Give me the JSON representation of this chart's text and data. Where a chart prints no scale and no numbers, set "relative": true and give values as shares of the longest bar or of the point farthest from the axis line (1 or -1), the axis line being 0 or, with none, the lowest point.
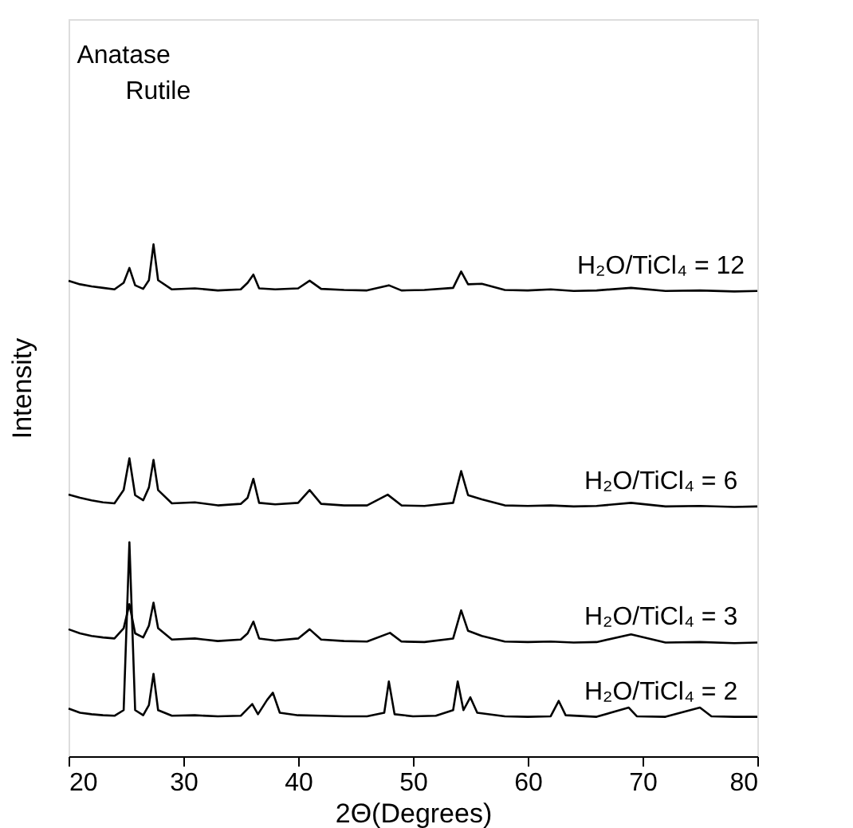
{
  "chart_data": {
    "type": "line",
    "relative": true,
    "xlabel": "2Θ(Degrees)",
    "ylabel": "Intensity",
    "xlim": [
      20,
      80
    ],
    "xticks": [
      20,
      30,
      40,
      50,
      60,
      70,
      80
    ],
    "grid": false,
    "legend": false,
    "series": [
      {
        "name": "H₂O/TiCl₄ = 12",
        "color": "#000000",
        "x": [
          20,
          21,
          22,
          23,
          24,
          24.8,
          25.3,
          25.8,
          26.5,
          27,
          27.4,
          27.8,
          29,
          31,
          33,
          35,
          35.6,
          36.1,
          36.6,
          38,
          40,
          41,
          42,
          44,
          46,
          47.9,
          49,
          51,
          53.5,
          54.2,
          54.8,
          56,
          58,
          60,
          62,
          64,
          66,
          69,
          72,
          75,
          78,
          80
        ],
        "values": [
          0.929,
          0.922,
          0.918,
          0.915,
          0.912,
          0.925,
          0.954,
          0.92,
          0.913,
          0.93,
          1.0,
          0.93,
          0.912,
          0.914,
          0.91,
          0.912,
          0.925,
          0.941,
          0.914,
          0.912,
          0.914,
          0.929,
          0.913,
          0.911,
          0.91,
          0.92,
          0.91,
          0.911,
          0.915,
          0.947,
          0.922,
          0.923,
          0.911,
          0.91,
          0.912,
          0.909,
          0.91,
          0.915,
          0.909,
          0.91,
          0.908,
          0.909
        ]
      },
      {
        "name": "H₂O/TiCl₄ = 6",
        "color": "#000000",
        "x": [
          20,
          21,
          22,
          23,
          24,
          24.8,
          25.3,
          25.8,
          26.5,
          27,
          27.4,
          27.8,
          29,
          31,
          33,
          35,
          35.6,
          36.1,
          36.6,
          38,
          40,
          41,
          42,
          44,
          46,
          47.8,
          49,
          51,
          53.5,
          54.2,
          54.8,
          56,
          58,
          60,
          62,
          64,
          66,
          69,
          72,
          75,
          78,
          80
        ],
        "values": [
          0.511,
          0.505,
          0.5,
          0.496,
          0.494,
          0.52,
          0.582,
          0.51,
          0.5,
          0.525,
          0.579,
          0.52,
          0.494,
          0.496,
          0.49,
          0.493,
          0.505,
          0.542,
          0.495,
          0.492,
          0.495,
          0.52,
          0.493,
          0.49,
          0.49,
          0.511,
          0.49,
          0.489,
          0.495,
          0.557,
          0.51,
          0.502,
          0.49,
          0.489,
          0.49,
          0.488,
          0.489,
          0.495,
          0.488,
          0.489,
          0.487,
          0.488
        ]
      },
      {
        "name": "H₂O/TiCl₄ = 3",
        "color": "#000000",
        "x": [
          20,
          21,
          22,
          23,
          24,
          24.8,
          25.3,
          25.8,
          26.5,
          27,
          27.4,
          27.8,
          29,
          31,
          33,
          35,
          35.6,
          36.1,
          36.6,
          38,
          40,
          41,
          42,
          44,
          46,
          48,
          49,
          51,
          53.5,
          54.2,
          54.8,
          56,
          58,
          60,
          62,
          64,
          66,
          69,
          72,
          75,
          78,
          80
        ],
        "values": [
          0.248,
          0.24,
          0.235,
          0.232,
          0.23,
          0.25,
          0.297,
          0.24,
          0.232,
          0.255,
          0.3,
          0.25,
          0.228,
          0.23,
          0.225,
          0.228,
          0.24,
          0.263,
          0.23,
          0.226,
          0.23,
          0.248,
          0.228,
          0.225,
          0.224,
          0.241,
          0.224,
          0.223,
          0.23,
          0.285,
          0.245,
          0.235,
          0.224,
          0.223,
          0.224,
          0.222,
          0.223,
          0.238,
          0.222,
          0.223,
          0.221,
          0.222
        ]
      },
      {
        "name": "H₂O/TiCl₄ = 2",
        "color": "#000000",
        "x": [
          20,
          21,
          22,
          23,
          24,
          24.8,
          25.3,
          25.8,
          26.5,
          27,
          27.4,
          27.8,
          29,
          31,
          33,
          35,
          36,
          36.5,
          37.3,
          37.8,
          38.4,
          40,
          42,
          44,
          46,
          47.5,
          47.9,
          48.4,
          50,
          52,
          53.5,
          53.9,
          54.4,
          55,
          55.6,
          58,
          60,
          62,
          62.7,
          63.3,
          66,
          68.8,
          69.5,
          72,
          75,
          76,
          78,
          80
        ],
        "values": [
          0.093,
          0.085,
          0.082,
          0.08,
          0.079,
          0.09,
          0.418,
          0.09,
          0.08,
          0.1,
          0.161,
          0.09,
          0.079,
          0.08,
          0.078,
          0.079,
          0.102,
          0.082,
          0.11,
          0.124,
          0.085,
          0.08,
          0.079,
          0.078,
          0.078,
          0.085,
          0.146,
          0.082,
          0.078,
          0.079,
          0.09,
          0.146,
          0.09,
          0.115,
          0.085,
          0.078,
          0.077,
          0.078,
          0.108,
          0.08,
          0.077,
          0.095,
          0.078,
          0.077,
          0.095,
          0.078,
          0.077,
          0.077
        ]
      }
    ],
    "annotations": [
      "Anatase",
      "Rutile"
    ]
  }
}
